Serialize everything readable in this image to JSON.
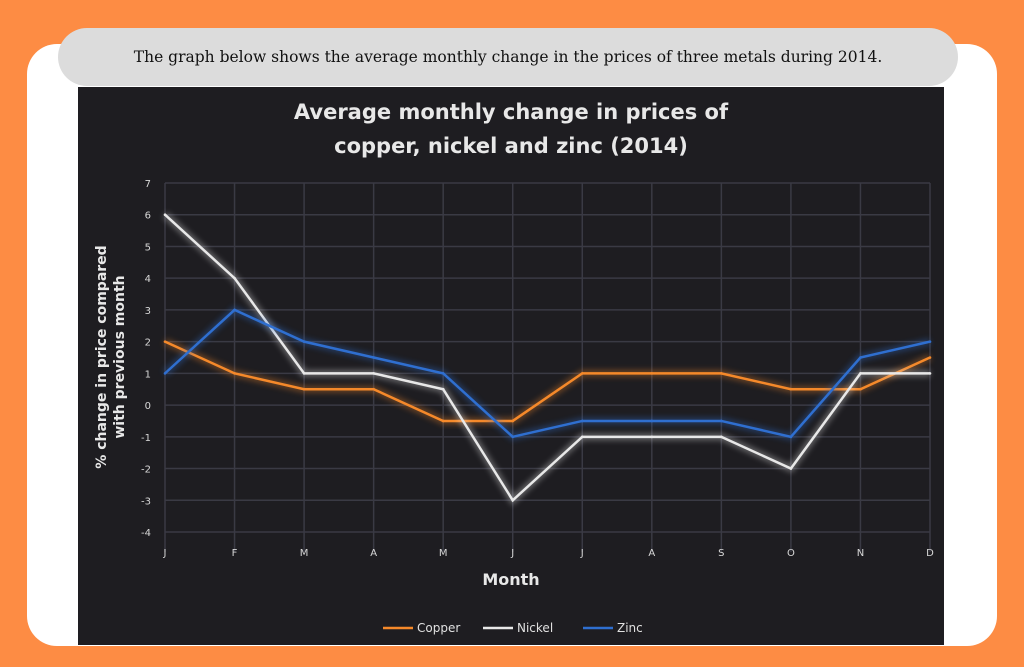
{
  "caption": "The graph below shows the average monthly change in the prices of three metals during 2014.",
  "chart_data": {
    "type": "line",
    "title": [
      "Average monthly change in prices of",
      "copper, nickel and zinc (2014)"
    ],
    "xlabel": "Month",
    "ylabel": [
      "% change in price compared",
      "with previous month"
    ],
    "categories": [
      "J",
      "F",
      "M",
      "A",
      "M",
      "J",
      "J",
      "A",
      "S",
      "O",
      "N",
      "D"
    ],
    "ylim": [
      -4,
      7
    ],
    "yticks": [
      -4,
      -3,
      -2,
      -1,
      0,
      1,
      2,
      3,
      4,
      5,
      6,
      7
    ],
    "grid": true,
    "legend": "bottom",
    "series": [
      {
        "name": "Copper",
        "color": "#f5892a",
        "values": [
          2,
          1,
          0.5,
          0.5,
          -0.5,
          -0.5,
          1,
          1,
          1,
          0.5,
          0.5,
          1.5
        ]
      },
      {
        "name": "Nickel",
        "color": "#e8e8e8",
        "values": [
          6,
          4,
          1,
          1,
          0.5,
          -3,
          -1,
          -1,
          -1,
          -2,
          1,
          1
        ]
      },
      {
        "name": "Zinc",
        "color": "#2f6fd0",
        "values": [
          1,
          3,
          2,
          1.5,
          1,
          -1,
          -0.5,
          -0.5,
          -0.5,
          -1,
          1.5,
          2
        ]
      }
    ]
  }
}
